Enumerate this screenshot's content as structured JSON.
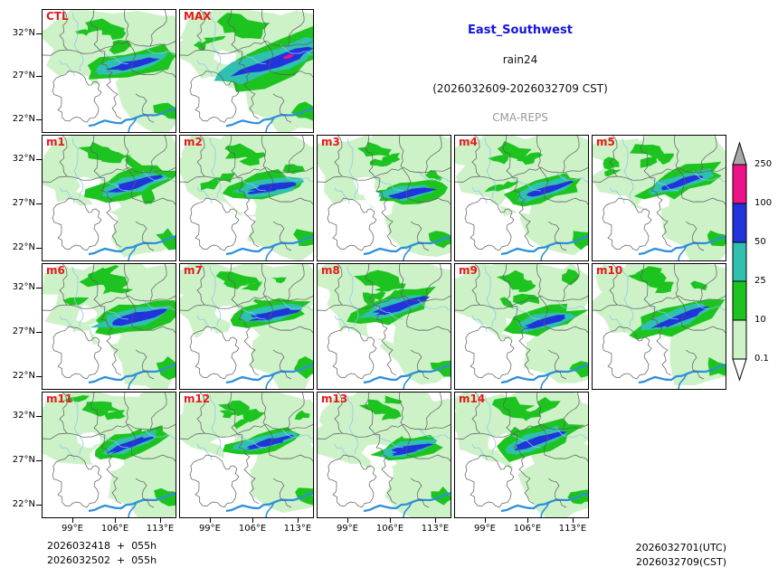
{
  "header": {
    "region": "East_Southwest",
    "variable": "rain24",
    "period": "(2026032609-2026032709 CST)",
    "model": "CMA-REPS"
  },
  "panel_grid": {
    "rows": [
      [
        "CTL",
        "MAX"
      ],
      [
        "m1",
        "m2",
        "m3",
        "m4",
        "m5"
      ],
      [
        "m6",
        "m7",
        "m8",
        "m9",
        "m10"
      ],
      [
        "m11",
        "m12",
        "m13",
        "m14"
      ]
    ]
  },
  "axes": {
    "y_ticks": [
      "32°N",
      "27°N",
      "22°N"
    ],
    "x_ticks": [
      "99°E",
      "106°E",
      "113°E"
    ]
  },
  "colorbar": {
    "tick_labels": [
      "250",
      "100",
      "50",
      "25",
      "10",
      "0.1"
    ],
    "segment_colors": [
      "#ee1289",
      "#2134db",
      "#2fc0b0",
      "#1dc420",
      "#cdf2c8"
    ],
    "over_color": "#a9a9a9",
    "under_color": "#ffffff"
  },
  "footer": {
    "left_lines": [
      "2026032418  +  055h",
      "2026032502  +  055h"
    ],
    "right_lines": [
      "2026032701(UTC)",
      "2026032709(CST)"
    ]
  },
  "colors": {
    "title_blue": "#1414dc",
    "model_gray": "#999999",
    "panel_label_red": "#e8191c",
    "boundary_gray": "#5a5a5a",
    "river_light": "#8fc8ea",
    "river_bold": "#2f8fd8"
  },
  "chart_data": {
    "type": "heatmap",
    "title": "East_Southwest rain24 (2026032609-2026032709 CST)",
    "subtitle": "CMA-REPS ensemble 24h accumulated rainfall maps",
    "panels": [
      "CTL",
      "MAX",
      "m1",
      "m2",
      "m3",
      "m4",
      "m5",
      "m6",
      "m7",
      "m8",
      "m9",
      "m10",
      "m11",
      "m12",
      "m13",
      "m14"
    ],
    "legend_levels_mm": [
      0.1,
      10,
      25,
      50,
      100,
      250
    ],
    "legend_colors": [
      "#cdf2c8",
      "#1dc420",
      "#2fc0b0",
      "#2134db",
      "#ee1289"
    ],
    "x_tick_labels": [
      "99°E",
      "106°E",
      "113°E"
    ],
    "y_tick_labels": [
      "32°N",
      "27°N",
      "22°N"
    ],
    "init_runs": [
      "2026032418 + 055h",
      "2026032502 + 055h"
    ],
    "valid_time": [
      "2026032701(UTC)",
      "2026032709(CST)"
    ],
    "legend_position": "right"
  }
}
